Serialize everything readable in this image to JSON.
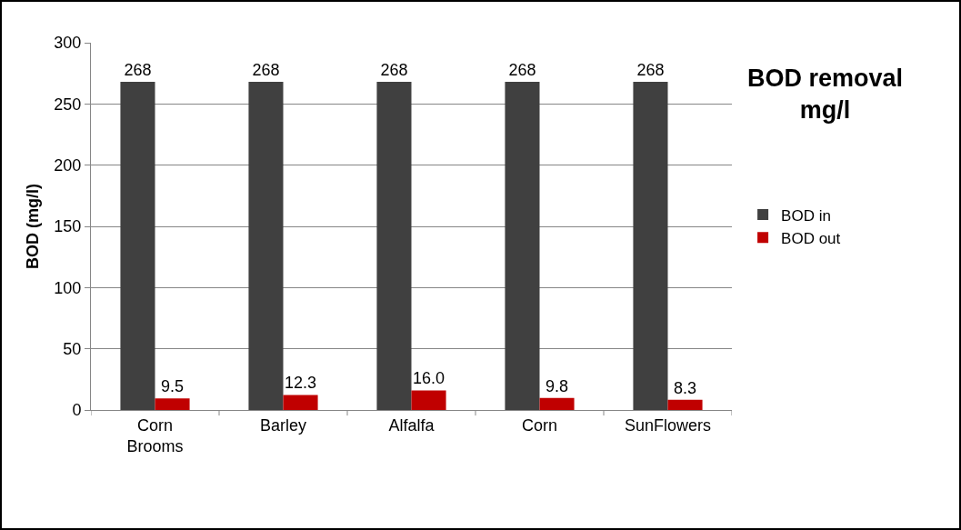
{
  "chart_data": {
    "type": "bar",
    "title": "BOD removal mg/l",
    "ylabel": "BOD (mg/l)",
    "categories": [
      "Corn Brooms",
      "Barley",
      "Alfalfa",
      "Corn",
      "SunFlowers"
    ],
    "series": [
      {
        "name": "BOD in",
        "color": "#404040",
        "values": [
          268,
          268,
          268,
          268,
          268
        ],
        "value_labels": [
          "268",
          "268",
          "268",
          "268",
          "268"
        ]
      },
      {
        "name": "BOD out",
        "color": "#c00000",
        "values": [
          9.5,
          12.3,
          16.0,
          9.8,
          8.3
        ],
        "value_labels": [
          "9.5",
          "12.3",
          "16.0",
          "9.8",
          "8.3"
        ]
      }
    ],
    "ylim": [
      0,
      300
    ],
    "yticks": [
      0,
      50,
      100,
      150,
      200,
      250,
      300
    ],
    "grid": "y",
    "legend": "right"
  }
}
